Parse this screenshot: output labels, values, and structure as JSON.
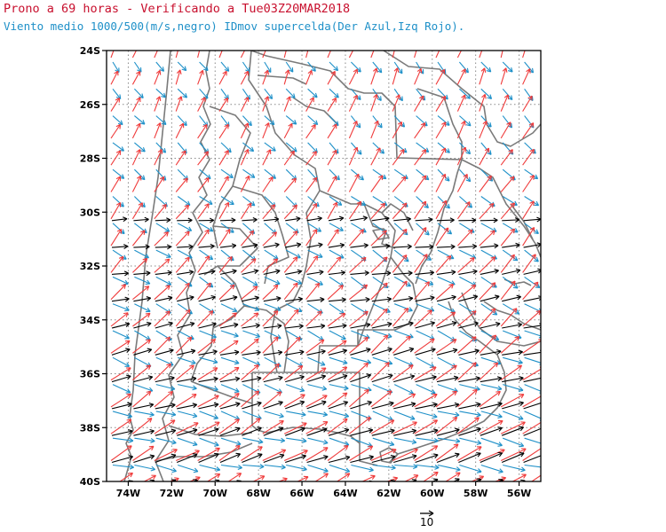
{
  "title": "Prono a 69 horas - Verificando a Tue03Z20MAR2018",
  "subtitle": "Viento medio 1000/500(m/s,negro) IDmov supercelda(Der Azul,Izq Rojo).",
  "colors": {
    "title": "#c8102e",
    "subtitle": "#1e90c8",
    "mean_wind": "#000000",
    "right_mover": "#1e90c8",
    "left_mover": "#ef3b3b",
    "borders": "#7a7a7a",
    "grid": "#888888"
  },
  "map": {
    "lat_labels": [
      "24S",
      "26S",
      "28S",
      "30S",
      "32S",
      "34S",
      "36S",
      "38S",
      "40S"
    ],
    "lon_labels": [
      "74W",
      "72W",
      "70W",
      "68W",
      "66W",
      "64W",
      "62W",
      "60W",
      "58W",
      "56W"
    ],
    "lon_range": [
      -75,
      -55
    ],
    "lat_range": [
      -40,
      -24
    ],
    "reference_vector": {
      "label": "10",
      "units": "m/s"
    }
  }
}
